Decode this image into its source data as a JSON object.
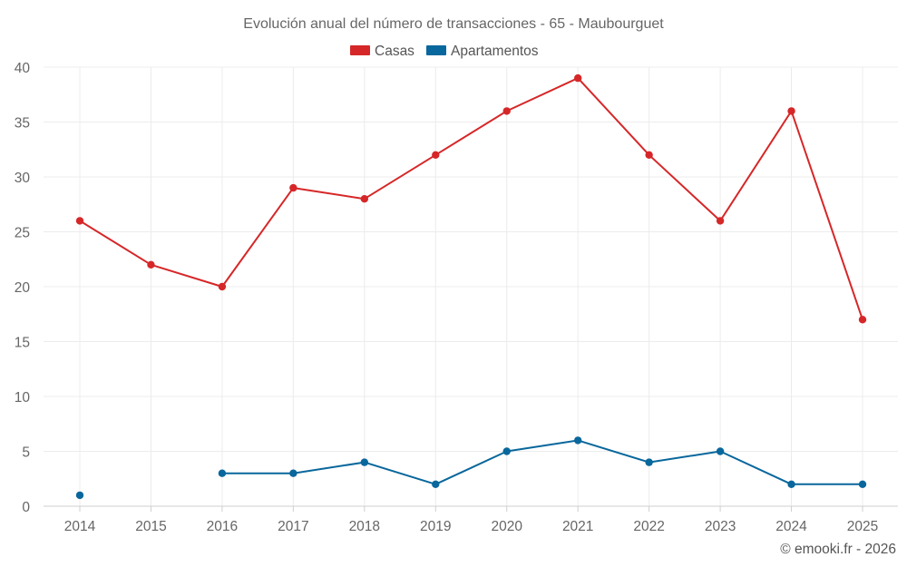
{
  "chart_data": {
    "type": "line",
    "title": "Evolución anual del número de transacciones - 65 - Maubourguet",
    "categories": [
      "2014",
      "2015",
      "2016",
      "2017",
      "2018",
      "2019",
      "2020",
      "2021",
      "2022",
      "2023",
      "2024",
      "2025"
    ],
    "series": [
      {
        "name": "Casas",
        "color": "#d62728",
        "values": [
          26,
          22,
          20,
          29,
          28,
          32,
          36,
          39,
          32,
          26,
          36,
          17
        ]
      },
      {
        "name": "Apartamentos",
        "color": "#08679c",
        "values": [
          1,
          null,
          3,
          3,
          4,
          2,
          5,
          6,
          4,
          5,
          2,
          2
        ]
      }
    ],
    "ylim": [
      0,
      40
    ],
    "yticks": [
      "0",
      "5",
      "10",
      "15",
      "20",
      "25",
      "30",
      "35",
      "40"
    ],
    "xlabel": "",
    "ylabel": "",
    "grid": true,
    "legend": "top-center"
  },
  "footer": {
    "credit": "© emooki.fr - 2026"
  }
}
